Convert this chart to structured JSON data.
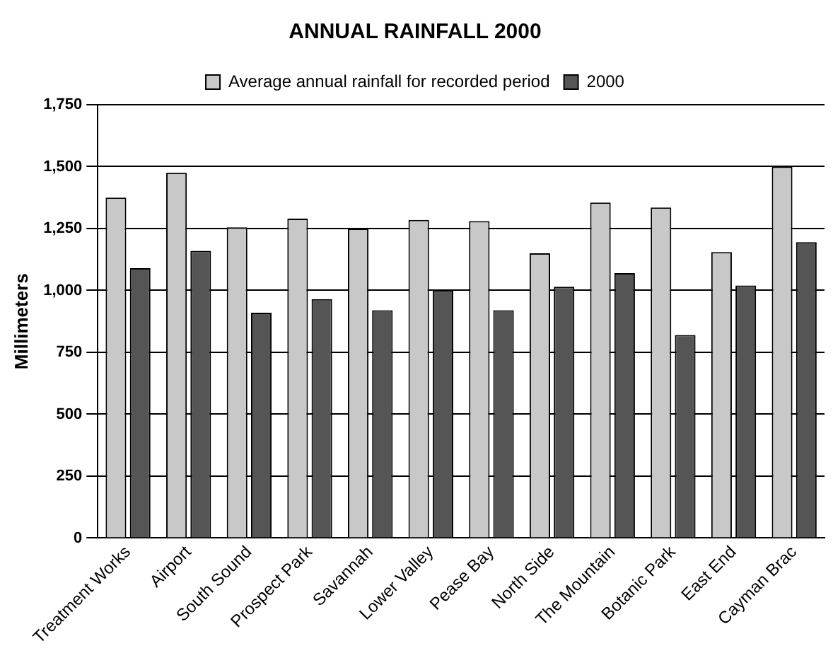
{
  "chart_data": {
    "type": "bar",
    "title": "ANNUAL RAINFALL 2000",
    "ylabel": "Millimeters",
    "categories": [
      "Treatment Works",
      "Airport",
      "South Sound",
      "Prospect Park",
      "Savannah",
      "Lower Valley",
      "Pease Bay",
      "North Side",
      "The Mountain",
      "Botanic Park",
      "East End",
      "Cayman Brac"
    ],
    "series": [
      {
        "name": "Average annual rainfall for recorded period",
        "color": "#c8c8c8",
        "values": [
          1375,
          1475,
          1255,
          1290,
          1250,
          1285,
          1280,
          1150,
          1355,
          1335,
          1155,
          1500
        ]
      },
      {
        "name": "2000",
        "color": "#555555",
        "values": [
          1090,
          1160,
          910,
          965,
          920,
          1000,
          920,
          1015,
          1070,
          820,
          1020,
          1195
        ]
      }
    ],
    "ylim": [
      0,
      1750
    ],
    "yticks": [
      {
        "value": 0,
        "label": "0"
      },
      {
        "value": 250,
        "label": "250"
      },
      {
        "value": 500,
        "label": "500"
      },
      {
        "value": 750,
        "label": "750"
      },
      {
        "value": 1000,
        "label": "1,000"
      },
      {
        "value": 1250,
        "label": "1,250"
      },
      {
        "value": 1500,
        "label": "1,500"
      },
      {
        "value": 1750,
        "label": "1,750"
      }
    ],
    "grid": "y",
    "legend": "top"
  }
}
